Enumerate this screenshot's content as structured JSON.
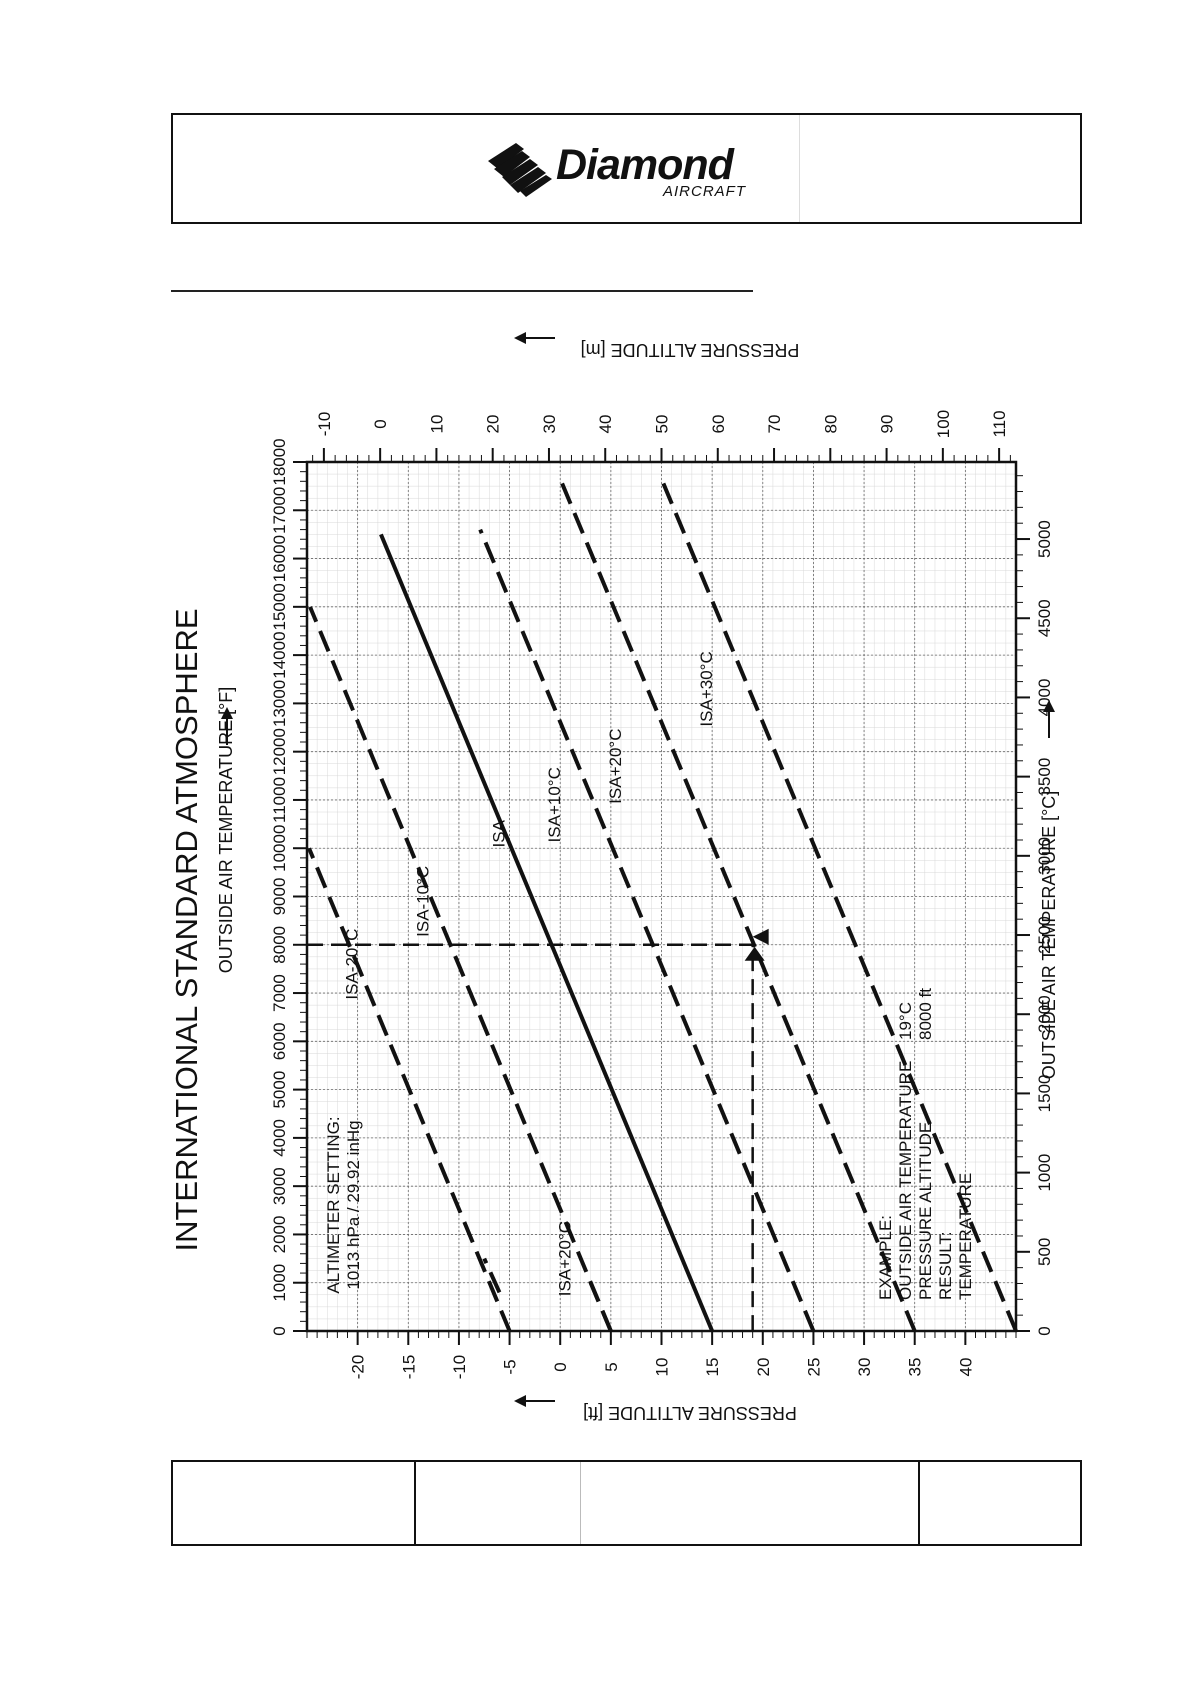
{
  "brand": {
    "name": "Diamond",
    "subtitle": "AIRCRAFT",
    "color": "#111111"
  },
  "chart_data": {
    "type": "line",
    "title": "INTERNATIONAL STANDARD ATMOSPHERE",
    "x_axis_label": "PRESSURE ALTITUDE [ft]",
    "x_axis_secondary_label": "PRESSURE ALTITUDE [m]",
    "y_axis_label": "OUTSIDE AIR TEMPERATURE [°C]",
    "y_axis_secondary_label": "OUTSIDE AIR TEMPERATURE [°F]",
    "xlim": [
      0,
      18000
    ],
    "ylim": [
      -25,
      45
    ],
    "x_ticks": [
      0,
      1000,
      2000,
      3000,
      4000,
      5000,
      6000,
      7000,
      8000,
      9000,
      10000,
      11000,
      12000,
      13000,
      14000,
      15000,
      16000,
      17000,
      18000
    ],
    "x_tick_labels": [
      "0",
      "1000",
      "2000",
      "3000",
      "4000",
      "5000",
      "6000",
      "7000",
      "8000",
      "9000",
      "10000",
      "11000",
      "12000",
      "13000",
      "14000",
      "15000",
      "16000",
      "17000",
      "18000"
    ],
    "m_ticks": [
      0,
      500,
      1000,
      1500,
      2000,
      2500,
      3000,
      3500,
      4000,
      4500,
      5000
    ],
    "m_tick_labels": [
      "0",
      "500",
      "1000",
      "1500",
      "2000",
      "2500",
      "3000",
      "3500",
      "4000",
      "4500",
      "5000"
    ],
    "c_ticks": [
      -20,
      -15,
      -10,
      -5,
      0,
      5,
      10,
      15,
      20,
      25,
      30,
      35,
      40
    ],
    "c_tick_labels": [
      "-20",
      "-15",
      "-10",
      "-5",
      "0",
      "5",
      "10",
      "15",
      "20",
      "25",
      "30",
      "35",
      "40"
    ],
    "f_ticks": [
      -10,
      0,
      10,
      20,
      30,
      40,
      50,
      60,
      70,
      80,
      90,
      100,
      110
    ],
    "f_tick_labels": [
      "-10",
      "0",
      "10",
      "20",
      "30",
      "40",
      "50",
      "60",
      "70",
      "80",
      "90",
      "100",
      "110"
    ],
    "grid": true,
    "series": [
      {
        "name": "ISA+30°C",
        "style": "dashed",
        "x": [
          0,
          17600
        ],
        "y": [
          45,
          10.1
        ]
      },
      {
        "name": "ISA+20°C",
        "style": "dashed",
        "x": [
          0,
          17600
        ],
        "y": [
          35,
          0.1
        ]
      },
      {
        "name": "ISA+10°C",
        "style": "dashed",
        "x": [
          0,
          16600
        ],
        "y": [
          25,
          -7.9
        ]
      },
      {
        "name": "ISA",
        "style": "solid",
        "x": [
          0,
          16500
        ],
        "y": [
          15,
          -17.7
        ]
      },
      {
        "name": "ISA-10°C",
        "style": "dashed",
        "x": [
          0,
          15000
        ],
        "y": [
          5,
          -24.7
        ]
      },
      {
        "name": "ISA-20°C",
        "style": "dashed",
        "x": [
          0,
          10000
        ],
        "y": [
          -5,
          -24.8
        ]
      },
      {
        "name": "",
        "style": "dashed",
        "x": [
          0,
          1000
        ],
        "y": [
          5,
          3
        ]
      },
      {
        "name": "",
        "style": "dashed",
        "x": [
          800,
          1500
        ],
        "y": [
          -6,
          -7.5
        ]
      }
    ],
    "series_labels": [
      {
        "text": "ISA+30°C",
        "x": 13300,
        "y": 15
      },
      {
        "text": "ISA+20°C",
        "x": 11700,
        "y": 6
      },
      {
        "text": "ISA+10°C",
        "x": 10900,
        "y": 0
      },
      {
        "text": "ISA",
        "x": 10300,
        "y": -5.5
      },
      {
        "text": "ISA-10°C",
        "x": 8900,
        "y": -13
      },
      {
        "text": "ISA-20°C",
        "x": 7600,
        "y": -20
      },
      {
        "text": "ISA+20°C",
        "x": 1500,
        "y": 1
      }
    ],
    "example_path": {
      "x": [
        8000,
        8000,
        0
      ],
      "y": [
        -25,
        19,
        19
      ]
    },
    "annotations": {
      "altimeter": [
        "ALTIMETER SETTING:",
        "1013 hPa / 29.92 inHg"
      ],
      "example_left": [
        "EXAMPLE:",
        "OUTSIDE AIR TEMPERATURE",
        "PRESSURE ALTITUDE",
        "RESULT:",
        "TEMPERATURE"
      ],
      "example_right": [
        "19°C",
        "8000 ft"
      ]
    }
  },
  "footer": {
    "cells": [
      "",
      "",
      "",
      ""
    ]
  }
}
